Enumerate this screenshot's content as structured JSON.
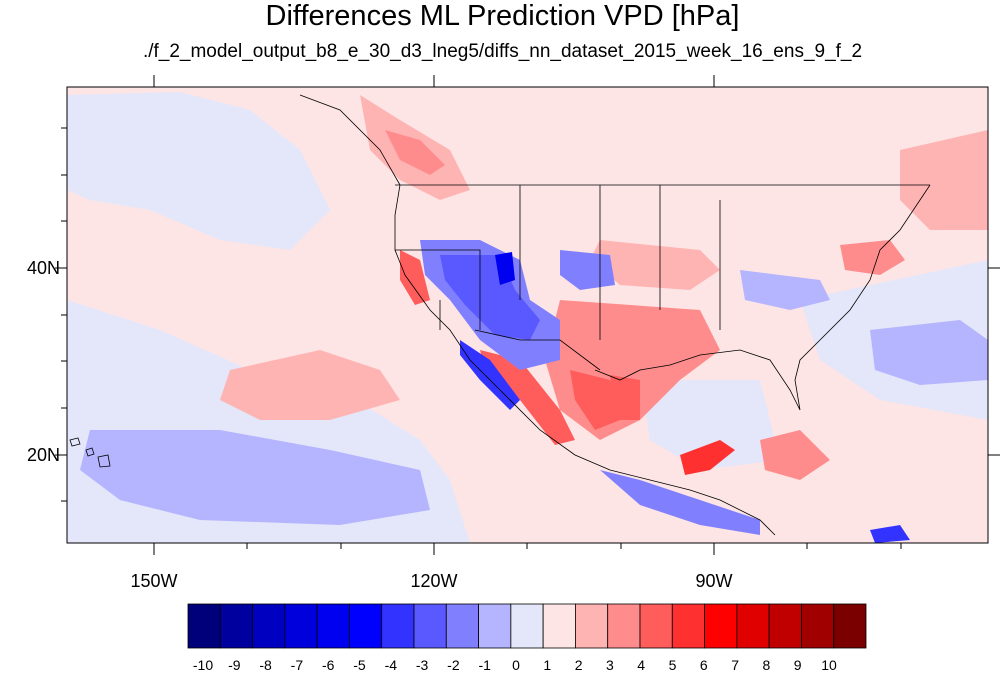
{
  "title": "Differences ML Prediction VPD [hPa]",
  "subtitle": "./f_2_model_output_b8_e_30_d3_lneg5/diffs_nn_dataset_2015_week_16_ens_9_f_2",
  "map": {
    "lat_labels": [
      "40N",
      "20N"
    ],
    "lon_labels": [
      "150W",
      "120W",
      "90W"
    ]
  },
  "colorbar": {
    "labels": [
      "-10",
      "-9",
      "-8",
      "-7",
      "-6",
      "-5",
      "-4",
      "-3",
      "-2",
      "-1",
      "0",
      "1",
      "2",
      "3",
      "4",
      "5",
      "6",
      "7",
      "8",
      "9",
      "10"
    ],
    "colors": [
      "#00007a",
      "#00009e",
      "#0000c0",
      "#0000dc",
      "#0000f0",
      "#0000ff",
      "#3333ff",
      "#5959ff",
      "#8080ff",
      "#b4b4ff",
      "#e4e6fa",
      "#fde5e5",
      "#ffb4b4",
      "#ff8c8c",
      "#ff5c5c",
      "#ff3030",
      "#ff0000",
      "#e00000",
      "#c00000",
      "#a00000",
      "#7a0000"
    ]
  }
}
